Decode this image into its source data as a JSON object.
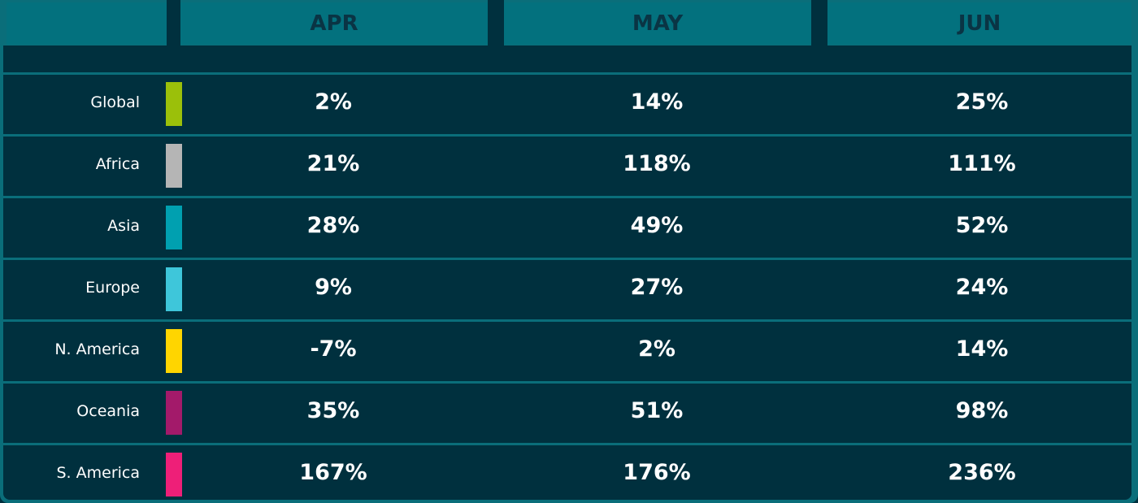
{
  "table": {
    "columns": [
      "APR",
      "MAY",
      "JUN"
    ],
    "rows": [
      {
        "label": "Global",
        "color": "#9bc00a",
        "cells": [
          "2%",
          "14%",
          "25%"
        ]
      },
      {
        "label": "Africa",
        "color": "#b5b5b5",
        "cells": [
          "21%",
          "118%",
          "111%"
        ]
      },
      {
        "label": "Asia",
        "color": "#00a0b0",
        "cells": [
          "28%",
          "49%",
          "52%"
        ]
      },
      {
        "label": "Europe",
        "color": "#3ec6da",
        "cells": [
          "9%",
          "27%",
          "24%"
        ]
      },
      {
        "label": "N. America",
        "color": "#ffd500",
        "cells": [
          "-7%",
          "2%",
          "14%"
        ]
      },
      {
        "label": "Oceania",
        "color": "#a31a6a",
        "cells": [
          "35%",
          "51%",
          "98%"
        ]
      },
      {
        "label": "S. America",
        "color": "#ee1f78",
        "cells": [
          "167%",
          "176%",
          "236%"
        ]
      }
    ]
  }
}
